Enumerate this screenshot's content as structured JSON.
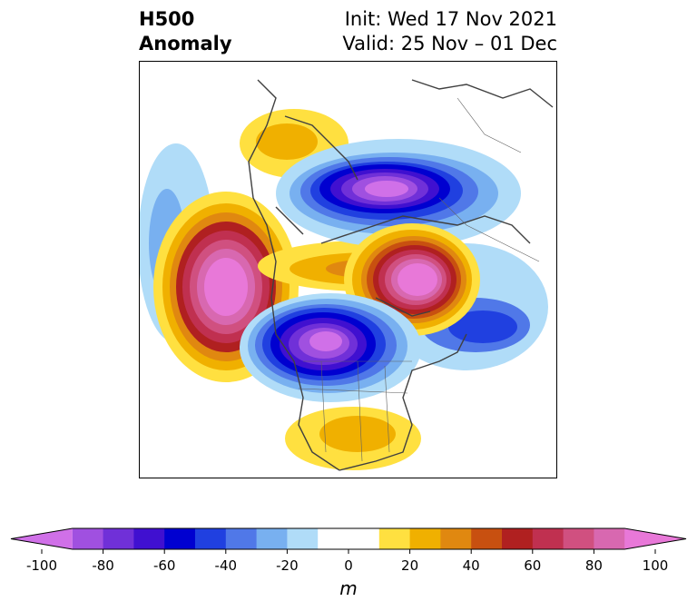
{
  "title": {
    "left_line1": "H500",
    "left_line2": "Anomaly",
    "right_line1": "Init: Wed 17 Nov 2021",
    "right_line2": "Valid: 25 Nov – 01 Dec"
  },
  "colorbar": {
    "units": "m",
    "tick_labels": [
      "-100",
      "-80",
      "-60",
      "-40",
      "-20",
      "0",
      "20",
      "40",
      "60",
      "80",
      "100"
    ],
    "colors": [
      "#d070e8",
      "#a050e0",
      "#7030d8",
      "#4010d0",
      "#0000d0",
      "#2040e0",
      "#5078e8",
      "#78b0f0",
      "#b0dcf8",
      "#ffffff",
      "#ffffff",
      "#ffe040",
      "#f0b000",
      "#e08810",
      "#c85010",
      "#b02020",
      "#c03050",
      "#d05080",
      "#d868b0",
      "#e878d8"
    ],
    "extend": "both"
  }
}
